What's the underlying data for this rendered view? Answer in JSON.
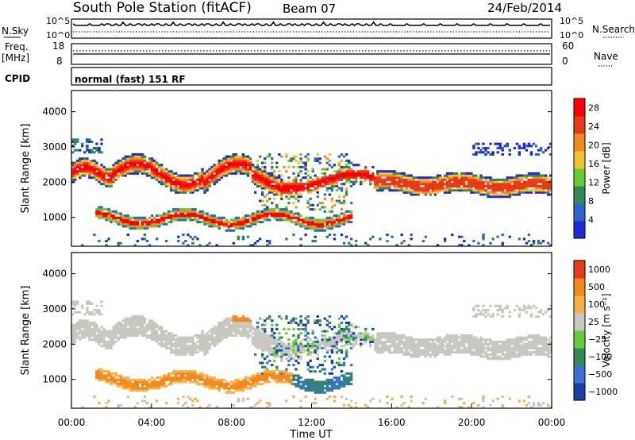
{
  "header": {
    "station": "South Pole Station (fitACF)",
    "beam": "Beam 07",
    "date": "24/Feb/2014"
  },
  "strip_nsky": {
    "left_label": "N.Sky",
    "left_ticks": [
      "10^5",
      "10^0"
    ],
    "right_label": "N.Search",
    "right_ticks": [
      "10^5",
      "10^0"
    ]
  },
  "strip_freq": {
    "left_label_1": "Freq.",
    "left_label_2": "[MHz]",
    "left_ticks": [
      "18",
      "8"
    ],
    "right_label": "Nave",
    "right_ticks": [
      "60",
      "0"
    ]
  },
  "strip_cpid": {
    "label": "CPID",
    "program": "normal (fast) 151 RF"
  },
  "chart_data": [
    {
      "type": "heatmap",
      "panel": "power",
      "ylabel": "Slant Range [km]",
      "xlabel": "",
      "x_range_hours": [
        0,
        24
      ],
      "ylim": [
        180,
        4600
      ],
      "yticks": [
        "1000",
        "2000",
        "3000",
        "4000"
      ],
      "colorbar": {
        "label": "Power [dB]",
        "ticks": [
          "4",
          "8",
          "12",
          "16",
          "20",
          "24",
          "28"
        ],
        "range": [
          0,
          30
        ]
      },
      "colors": [
        "#1f2bd8",
        "#2f63cf",
        "#2e8b57",
        "#66cc33",
        "#f2c230",
        "#f28a1f",
        "#e83a1a",
        "#ff0000"
      ]
    },
    {
      "type": "heatmap",
      "panel": "velocity",
      "ylabel": "Slant Range [km]",
      "xlabel": "Time UT",
      "x_range_hours": [
        0,
        24
      ],
      "ylim": [
        180,
        4600
      ],
      "yticks": [
        "1000",
        "2000",
        "3000",
        "4000"
      ],
      "xticks": [
        "00:00",
        "04:00",
        "08:00",
        "12:00",
        "16:00",
        "20:00",
        "00:00"
      ],
      "colorbar": {
        "label": "Velocity [m s⁻¹]",
        "ticks": [
          "1000",
          "500",
          "100",
          "25",
          "−25",
          "−100",
          "−500",
          "−1000"
        ]
      },
      "colors": [
        "#1a3fa8",
        "#3b6fd1",
        "#2e8b57",
        "#66cc33",
        "#c8c8c0",
        "#f7b24a",
        "#f28a1f",
        "#e83a1a"
      ]
    }
  ]
}
